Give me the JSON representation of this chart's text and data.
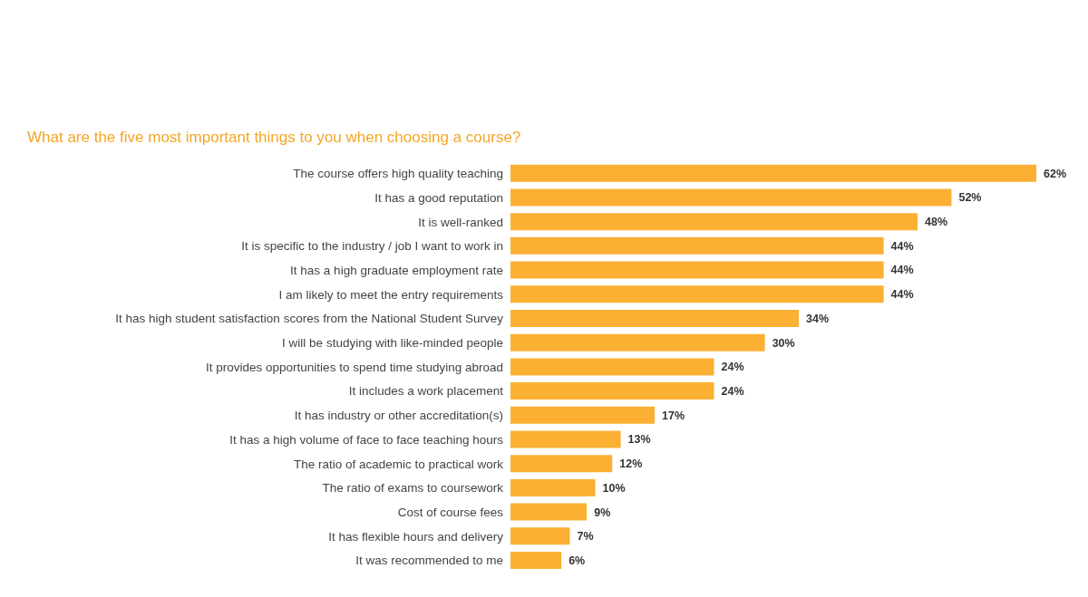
{
  "chart_data": {
    "type": "bar",
    "orientation": "horizontal",
    "title": "What are the five most important things to you when choosing a course?",
    "categories": [
      "The course offers high quality teaching",
      "It has a good reputation",
      "It is well-ranked",
      "It is specific to the industry / job I want to work in",
      "It has a high graduate employment rate",
      "I am likely to meet the entry requirements",
      "It has high student satisfaction scores from the National Student Survey",
      "I will be studying with like-minded people",
      "It provides opportunities to spend time studying abroad",
      "It includes a work placement",
      "It has industry or other accreditation(s)",
      "It has a high volume of face to face teaching hours",
      "The ratio of academic to practical work",
      "The ratio of exams to coursework",
      "Cost of course fees",
      "It has flexible hours and delivery",
      "It was recommended to me"
    ],
    "values": [
      62,
      52,
      48,
      44,
      44,
      44,
      34,
      30,
      24,
      24,
      17,
      13,
      12,
      10,
      9,
      7,
      6
    ],
    "value_labels": [
      "62%",
      "52%",
      "48%",
      "44%",
      "44%",
      "44%",
      "34%",
      "30%",
      "24%",
      "24%",
      "17%",
      "13%",
      "12%",
      "10%",
      "9%",
      "7%",
      "6%"
    ],
    "color": "#fbb034"
  }
}
